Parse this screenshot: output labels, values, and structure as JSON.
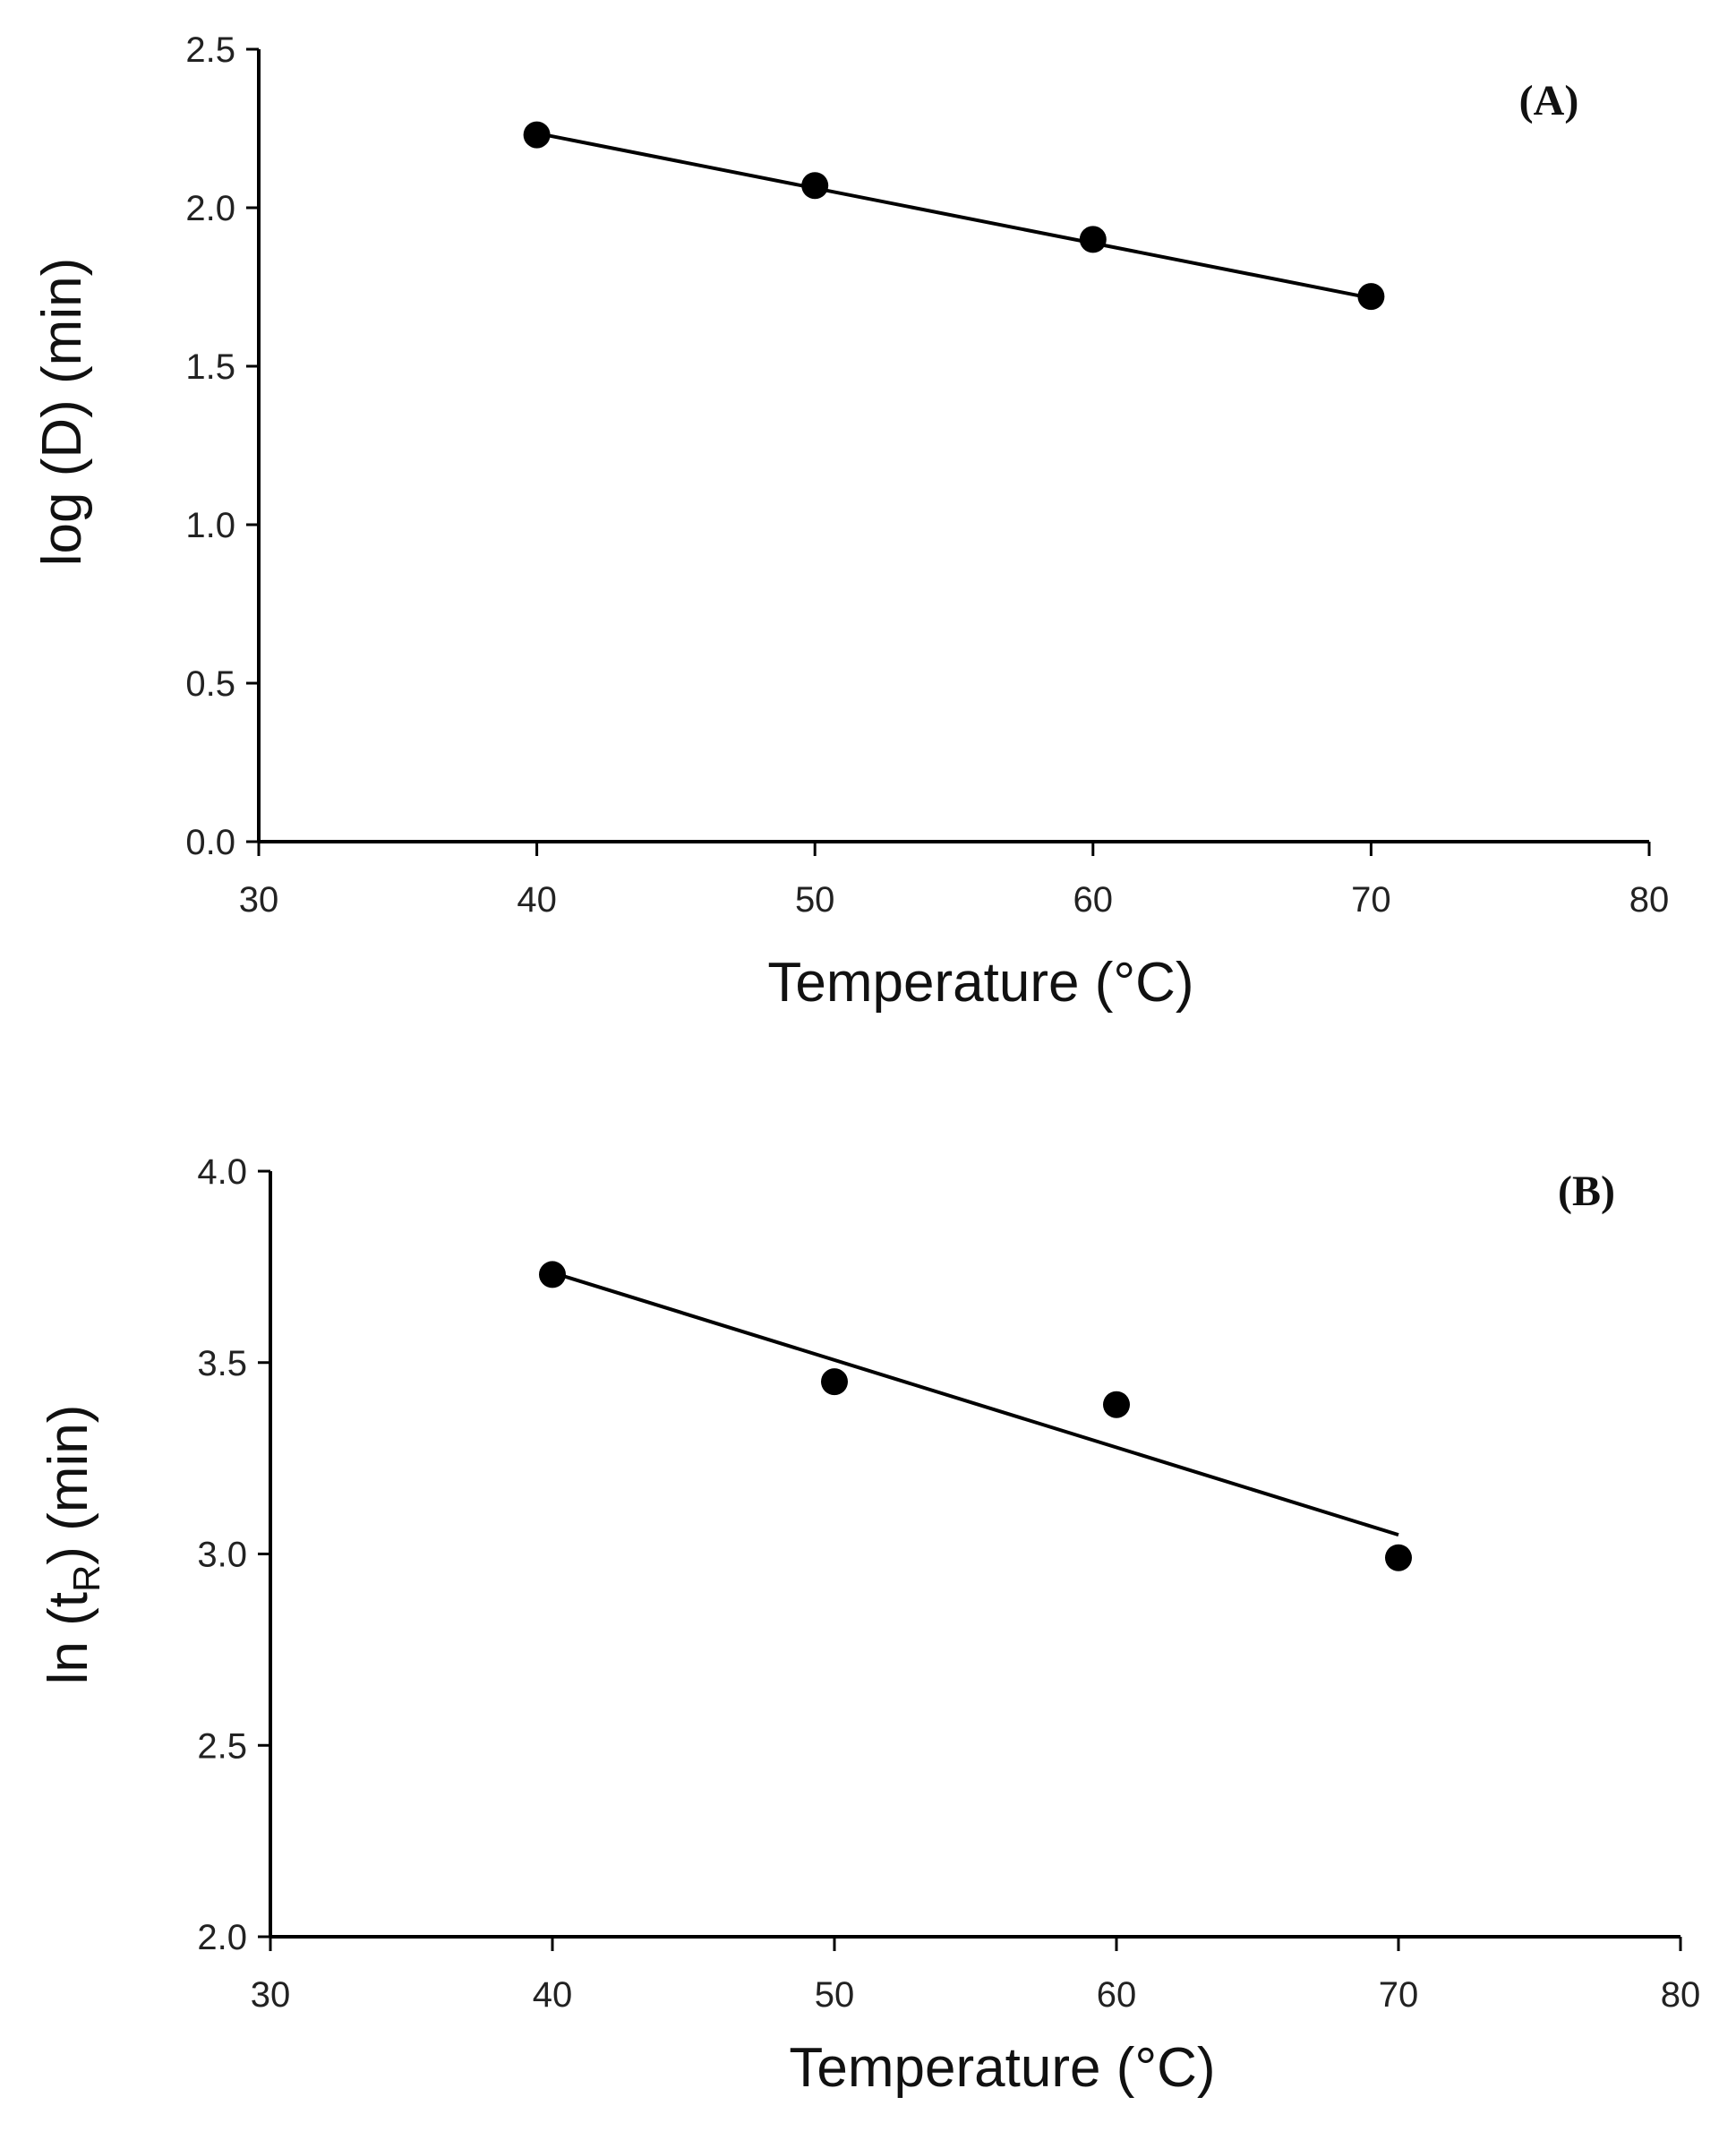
{
  "chart_data": [
    {
      "type": "scatter",
      "panel_label": "(A)",
      "x": [
        40,
        50,
        60,
        70
      ],
      "y": [
        2.23,
        2.07,
        1.9,
        1.72
      ],
      "trendline": {
        "x": [
          40,
          70
        ],
        "y": [
          2.235,
          1.715
        ]
      },
      "xlabel": "Temperature (°C)",
      "ylabel": "log (D) (min)",
      "ylabel_sub": "",
      "ylabel_tail": "",
      "xlim": [
        30,
        80
      ],
      "ylim": [
        0.0,
        2.5
      ],
      "xticks": [
        30,
        40,
        50,
        60,
        70,
        80
      ],
      "xtick_labels": [
        "30",
        "40",
        "50",
        "60",
        "70",
        "80"
      ],
      "yticks": [
        0.0,
        0.5,
        1.0,
        1.5,
        2.0,
        2.5
      ],
      "ytick_labels": [
        "0.0",
        "0.5",
        "1.0",
        "1.5",
        "2.0",
        "2.5"
      ],
      "grid": false,
      "legend": "none"
    },
    {
      "type": "scatter",
      "panel_label": "(B)",
      "x": [
        40,
        50,
        60,
        70
      ],
      "y": [
        3.73,
        3.45,
        3.39,
        2.99
      ],
      "trendline": {
        "x": [
          40,
          70
        ],
        "y": [
          3.735,
          3.05
        ]
      },
      "xlabel": "Temperature (°C)",
      "ylabel": "ln (t",
      "ylabel_sub": "R",
      "ylabel_tail": ") (min)",
      "xlim": [
        30,
        80
      ],
      "ylim": [
        2.0,
        4.0
      ],
      "xticks": [
        30,
        40,
        50,
        60,
        70,
        80
      ],
      "xtick_labels": [
        "30",
        "40",
        "50",
        "60",
        "70",
        "80"
      ],
      "yticks": [
        2.0,
        2.5,
        3.0,
        3.5,
        4.0
      ],
      "ytick_labels": [
        "2.0",
        "2.5",
        "3.0",
        "3.5",
        "4.0"
      ],
      "grid": false,
      "legend": "none"
    }
  ]
}
